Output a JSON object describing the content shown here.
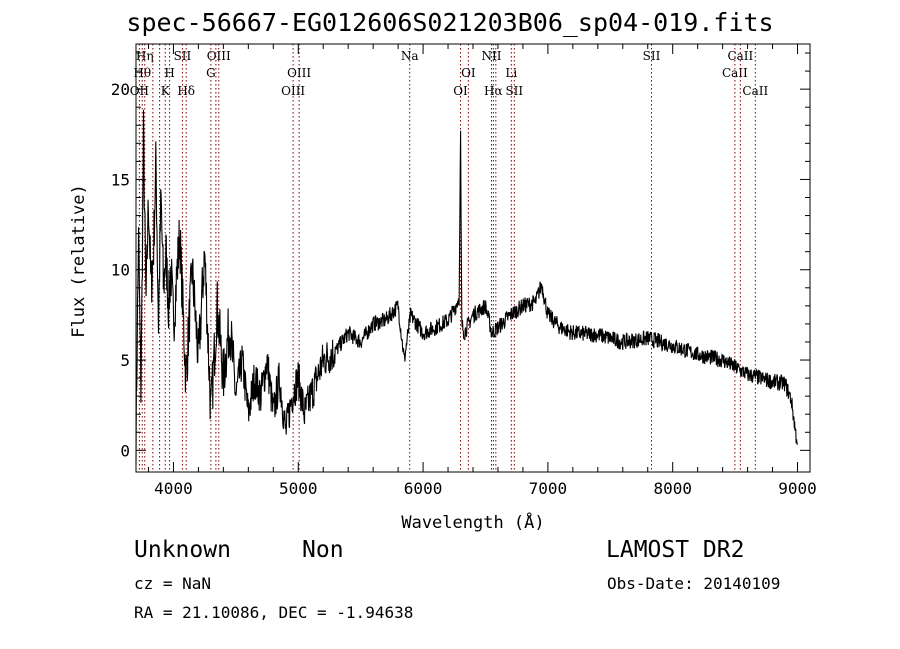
{
  "title": "spec-56667-EG012606S021203B06_sp04-019.fits",
  "info": {
    "object_class": "Unknown",
    "subclass": "Non",
    "survey": "LAMOST DR2",
    "cz": "cz = NaN",
    "obs_date": "Obs-Date: 20140109",
    "radec": "RA =  21.10086, DEC =  -1.94638"
  },
  "chart_data": {
    "type": "line",
    "title": "spec-56667-EG012606S021203B06_sp04-019.fits",
    "xlabel": "Wavelength (Å)",
    "ylabel": "Flux (relative)",
    "xlim": [
      3700,
      9100
    ],
    "ylim": [
      -1.2,
      22.5
    ],
    "x_ticks": [
      4000,
      5000,
      6000,
      7000,
      8000,
      9000
    ],
    "y_ticks": [
      0,
      5,
      10,
      15,
      20
    ],
    "line_color": "#000000",
    "marker_color": "#8b0000",
    "spectrum": {
      "x": [
        3700,
        3720,
        3740,
        3760,
        3780,
        3800,
        3820,
        3840,
        3860,
        3880,
        3900,
        3920,
        3940,
        3960,
        3980,
        4000,
        4050,
        4100,
        4150,
        4200,
        4250,
        4300,
        4350,
        4400,
        4450,
        4500,
        4550,
        4600,
        4650,
        4700,
        4750,
        4800,
        4850,
        4900,
        4950,
        5000,
        5050,
        5100,
        5200,
        5300,
        5400,
        5500,
        5600,
        5700,
        5800,
        5850,
        5900,
        6000,
        6100,
        6200,
        6250,
        6290,
        6300,
        6310,
        6330,
        6400,
        6500,
        6550,
        6600,
        6700,
        6800,
        6900,
        6950,
        7000,
        7100,
        7200,
        7400,
        7600,
        7800,
        8000,
        8200,
        8400,
        8500,
        8600,
        8700,
        8800,
        8900,
        8950,
        9000
      ],
      "y": [
        0.5,
        12,
        3,
        17.5,
        8,
        14,
        9,
        11,
        16,
        7,
        14,
        9,
        11,
        8,
        10,
        7,
        12,
        4,
        10,
        5,
        11,
        2,
        8,
        4,
        7,
        3,
        5,
        2,
        4,
        3,
        5,
        2,
        4,
        1,
        3,
        4,
        2,
        3,
        5,
        5.5,
        6.5,
        6,
        7,
        7.2,
        8,
        5,
        7.5,
        6.5,
        6.8,
        7.2,
        7.8,
        8.5,
        17.7,
        7,
        6.5,
        7.5,
        8,
        6.5,
        6.8,
        7.5,
        8,
        8.2,
        9.2,
        7.5,
        6.8,
        6.5,
        6.4,
        6,
        6.2,
        5.8,
        5.3,
        5,
        4.6,
        4.2,
        4,
        3.8,
        3.7,
        2.8,
        0.2
      ]
    },
    "line_markers": [
      {
        "x": 3727,
        "label": "OII",
        "tier": 2
      },
      {
        "x": 3750,
        "label": "Hθ",
        "tier": 1
      },
      {
        "x": 3770,
        "label": "Hη",
        "tier": 0
      },
      {
        "x": 3835,
        "label": "",
        "tier": 0
      },
      {
        "x": 3889,
        "label": "",
        "tier": 0
      },
      {
        "x": 3934,
        "label": "K",
        "tier": 2
      },
      {
        "x": 3969,
        "label": "H",
        "tier": 1
      },
      {
        "x": 4072,
        "label": "SII",
        "tier": 0
      },
      {
        "x": 4102,
        "label": "Hδ",
        "tier": 2
      },
      {
        "x": 4300,
        "label": "G",
        "tier": 1
      },
      {
        "x": 4340,
        "label": "",
        "tier": 0
      },
      {
        "x": 4363,
        "label": "OIII",
        "tier": 0
      },
      {
        "x": 4959,
        "label": "OIII",
        "tier": 2
      },
      {
        "x": 5007,
        "label": "OIII",
        "tier": 1
      },
      {
        "x": 5893,
        "label": "Na",
        "tier": 0
      },
      {
        "x": 6300,
        "label": "OI",
        "tier": 2
      },
      {
        "x": 6363,
        "label": "OI",
        "tier": 1
      },
      {
        "x": 6548,
        "label": "NII",
        "tier": 0
      },
      {
        "x": 6563,
        "label": "Hα",
        "tier": 2
      },
      {
        "x": 6583,
        "label": "",
        "tier": 0
      },
      {
        "x": 6707,
        "label": "Li",
        "tier": 1
      },
      {
        "x": 6731,
        "label": "SII",
        "tier": 2
      },
      {
        "x": 7830,
        "label": "SII",
        "tier": 0
      },
      {
        "x": 8498,
        "label": "CaII",
        "tier": 1
      },
      {
        "x": 8542,
        "label": "CaII",
        "tier": 0
      },
      {
        "x": 8662,
        "label": "CaII",
        "tier": 2
      }
    ]
  }
}
